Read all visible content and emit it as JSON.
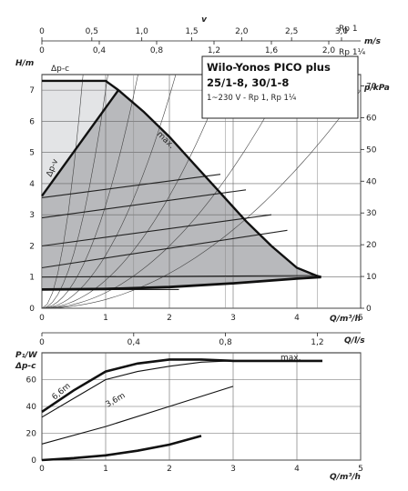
{
  "chart_data": [
    {
      "type": "line",
      "title_lines": [
        "Wilo-Yonos PICO plus",
        "25/1-8, 30/1-8"
      ],
      "subtitle": "1~230 V - Rp 1, Rp 1¼",
      "xlabel": "Q/m³/h",
      "ylabel_left": "H/m",
      "ylabel_right": "p/kPa",
      "xlim": [
        0,
        5
      ],
      "ylim": [
        0,
        7.5
      ],
      "x_ticks": [
        "0",
        "1",
        "2",
        "3",
        "4",
        "5"
      ],
      "y_ticks": [
        "0",
        "1",
        "2",
        "3",
        "4",
        "5",
        "6",
        "7"
      ],
      "right_ticks": [
        "0",
        "10",
        "20",
        "30",
        "40",
        "50",
        "60",
        "70"
      ],
      "ls_axis": {
        "label": "Q/l/s",
        "ticks": [
          "0",
          "0,4",
          "0,8",
          "1,2"
        ]
      },
      "velocity_axis": {
        "label_v": "v",
        "label_ms": "m/s",
        "label_rp1": "Rp 1",
        "label_rp114": "Rp 1¼",
        "rp1_ticks": [
          "0",
          "0,5",
          "1,0",
          "1,5",
          "2,0",
          "2,5",
          "3,0"
        ],
        "rp114_ticks": [
          "0",
          "0,4",
          "0,8",
          "1,2",
          "1,6",
          "2,0"
        ]
      },
      "labels": {
        "dpc": "Δp-c",
        "dpv": "Δp-v",
        "max": "max."
      },
      "max_curve": {
        "x": [
          0,
          1.0,
          1.2,
          1.6,
          2.0,
          2.4,
          2.8,
          3.2,
          3.6,
          4.0,
          4.3,
          4.38
        ],
        "y": [
          7.3,
          7.3,
          7.0,
          6.3,
          5.5,
          4.6,
          3.7,
          2.8,
          2.0,
          1.3,
          1.05,
          1.0
        ]
      },
      "dpv_line": {
        "x": [
          0,
          1.2
        ],
        "y": [
          3.6,
          7.0
        ]
      },
      "min_curve": {
        "x": [
          0,
          1.0,
          2.0,
          3.0,
          4.0,
          4.38
        ],
        "y": [
          0.6,
          0.62,
          0.68,
          0.8,
          0.95,
          1.0
        ]
      },
      "control_lines": [
        {
          "x": [
            0,
            2.15
          ],
          "y": [
            0.6,
            0.6
          ]
        },
        {
          "x": [
            0,
            4.3
          ],
          "y": [
            1.0,
            1.05
          ]
        },
        {
          "x": [
            0,
            3.85
          ],
          "y": [
            1.3,
            2.5
          ]
        },
        {
          "x": [
            0,
            3.6
          ],
          "y": [
            2.0,
            3.0
          ]
        },
        {
          "x": [
            0,
            3.2
          ],
          "y": [
            2.9,
            3.8
          ]
        },
        {
          "x": [
            0,
            2.8
          ],
          "y": [
            3.55,
            4.3
          ]
        }
      ],
      "system_curve_k": [
        0.28,
        0.5,
        0.9,
        1.7,
        3.3,
        7.0,
        18.0
      ]
    },
    {
      "type": "line",
      "ylabel_lines": [
        "P₁/W",
        "Δp-c"
      ],
      "xlabel": "Q/m³/h",
      "xlim": [
        0,
        5
      ],
      "ylim": [
        0,
        80
      ],
      "x_ticks": [
        "0",
        "1",
        "2",
        "3",
        "4",
        "5"
      ],
      "y_ticks": [
        "0",
        "20",
        "40",
        "60"
      ],
      "labels": {
        "max": "max.",
        "h66": "6,6m",
        "h36": "3,6m"
      },
      "series": [
        {
          "name": "max.",
          "x": [
            0,
            0.5,
            1.0,
            1.5,
            2.0,
            2.5,
            3.0,
            3.5,
            4.0,
            4.4
          ],
          "y": [
            36,
            52,
            66,
            72,
            75,
            75,
            74,
            74,
            74,
            74
          ]
        },
        {
          "name": "6,6m",
          "x": [
            0,
            0.5,
            1.0,
            1.5,
            2.0,
            2.5,
            2.95
          ],
          "y": [
            32,
            46,
            60,
            66,
            70,
            73,
            74
          ]
        },
        {
          "name": "3,6m",
          "x": [
            0,
            1.0,
            2.0,
            3.0
          ],
          "y": [
            12,
            25,
            40,
            55
          ]
        },
        {
          "x": [
            0,
            0.5,
            1.0,
            1.5,
            2.0,
            2.5
          ],
          "y": [
            0,
            1.5,
            3.5,
            7.0,
            11.5,
            18.0
          ]
        }
      ]
    }
  ]
}
